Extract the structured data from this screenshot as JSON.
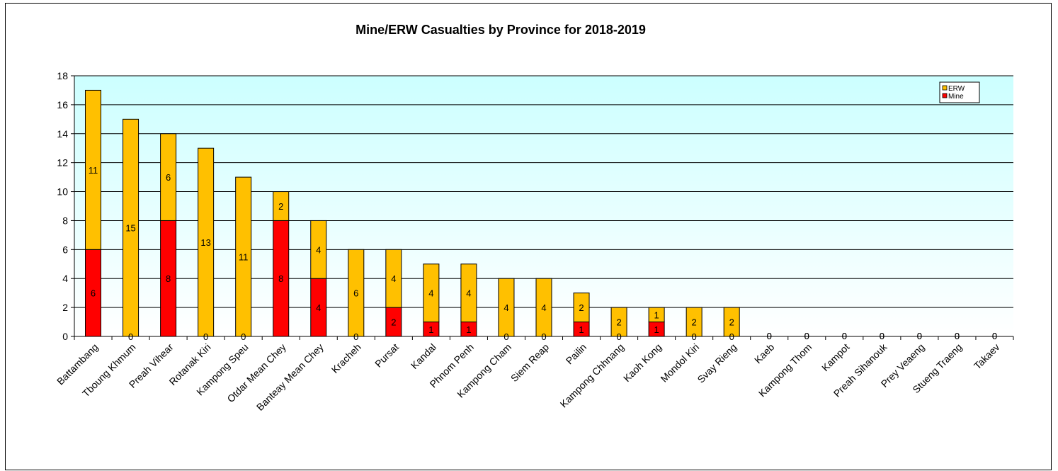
{
  "chart_data": {
    "type": "bar",
    "stacked": true,
    "title": "Mine/ERW Casualties by Province for 2018-2019",
    "xlabel": "",
    "ylabel": "",
    "ylim": [
      0,
      18
    ],
    "yticks": [
      "0",
      "2",
      "4",
      "6",
      "8",
      "10",
      "12",
      "14",
      "16",
      "18"
    ],
    "grid": true,
    "legend_position": "top-right",
    "categories": [
      "Battambang",
      "Tboung Khmum",
      "Preah Vihear",
      "Rotanak Kiri",
      "Kampong Speu",
      "Otdar Mean Chey",
      "Banteay Mean Chey",
      "Kracheh",
      "Pursat",
      "Kandal",
      "Phnom Penh",
      "Kampong Cham",
      "Siem Reap",
      "Pailin",
      "Kampong Chhnang",
      "Kaoh Kong",
      "Mondol Kiri",
      "Svay Rieng",
      "Kaeb",
      "Kampong Thom",
      "Kampot",
      "Preah Sihanouk",
      "Prey Veaeng",
      "Stueng Traeng",
      "Takaev"
    ],
    "series": [
      {
        "name": "Mine",
        "color": "#ff0000",
        "values": [
          6,
          0,
          8,
          0,
          0,
          8,
          4,
          0,
          2,
          1,
          1,
          0,
          0,
          1,
          0,
          1,
          0,
          0,
          0,
          0,
          0,
          0,
          0,
          0,
          0
        ]
      },
      {
        "name": "ERW",
        "color": "#ffc000",
        "values": [
          11,
          15,
          6,
          13,
          11,
          2,
          4,
          6,
          4,
          4,
          4,
          4,
          4,
          2,
          2,
          1,
          2,
          2,
          0,
          0,
          0,
          0,
          0,
          0,
          0
        ]
      }
    ],
    "legend": [
      "ERW",
      "Mine"
    ],
    "colors": {
      "plot_background_top": "#ccffff",
      "plot_background_bottom": "#ffffff",
      "gridline": "#000000",
      "bar_outline": "#000000"
    }
  }
}
